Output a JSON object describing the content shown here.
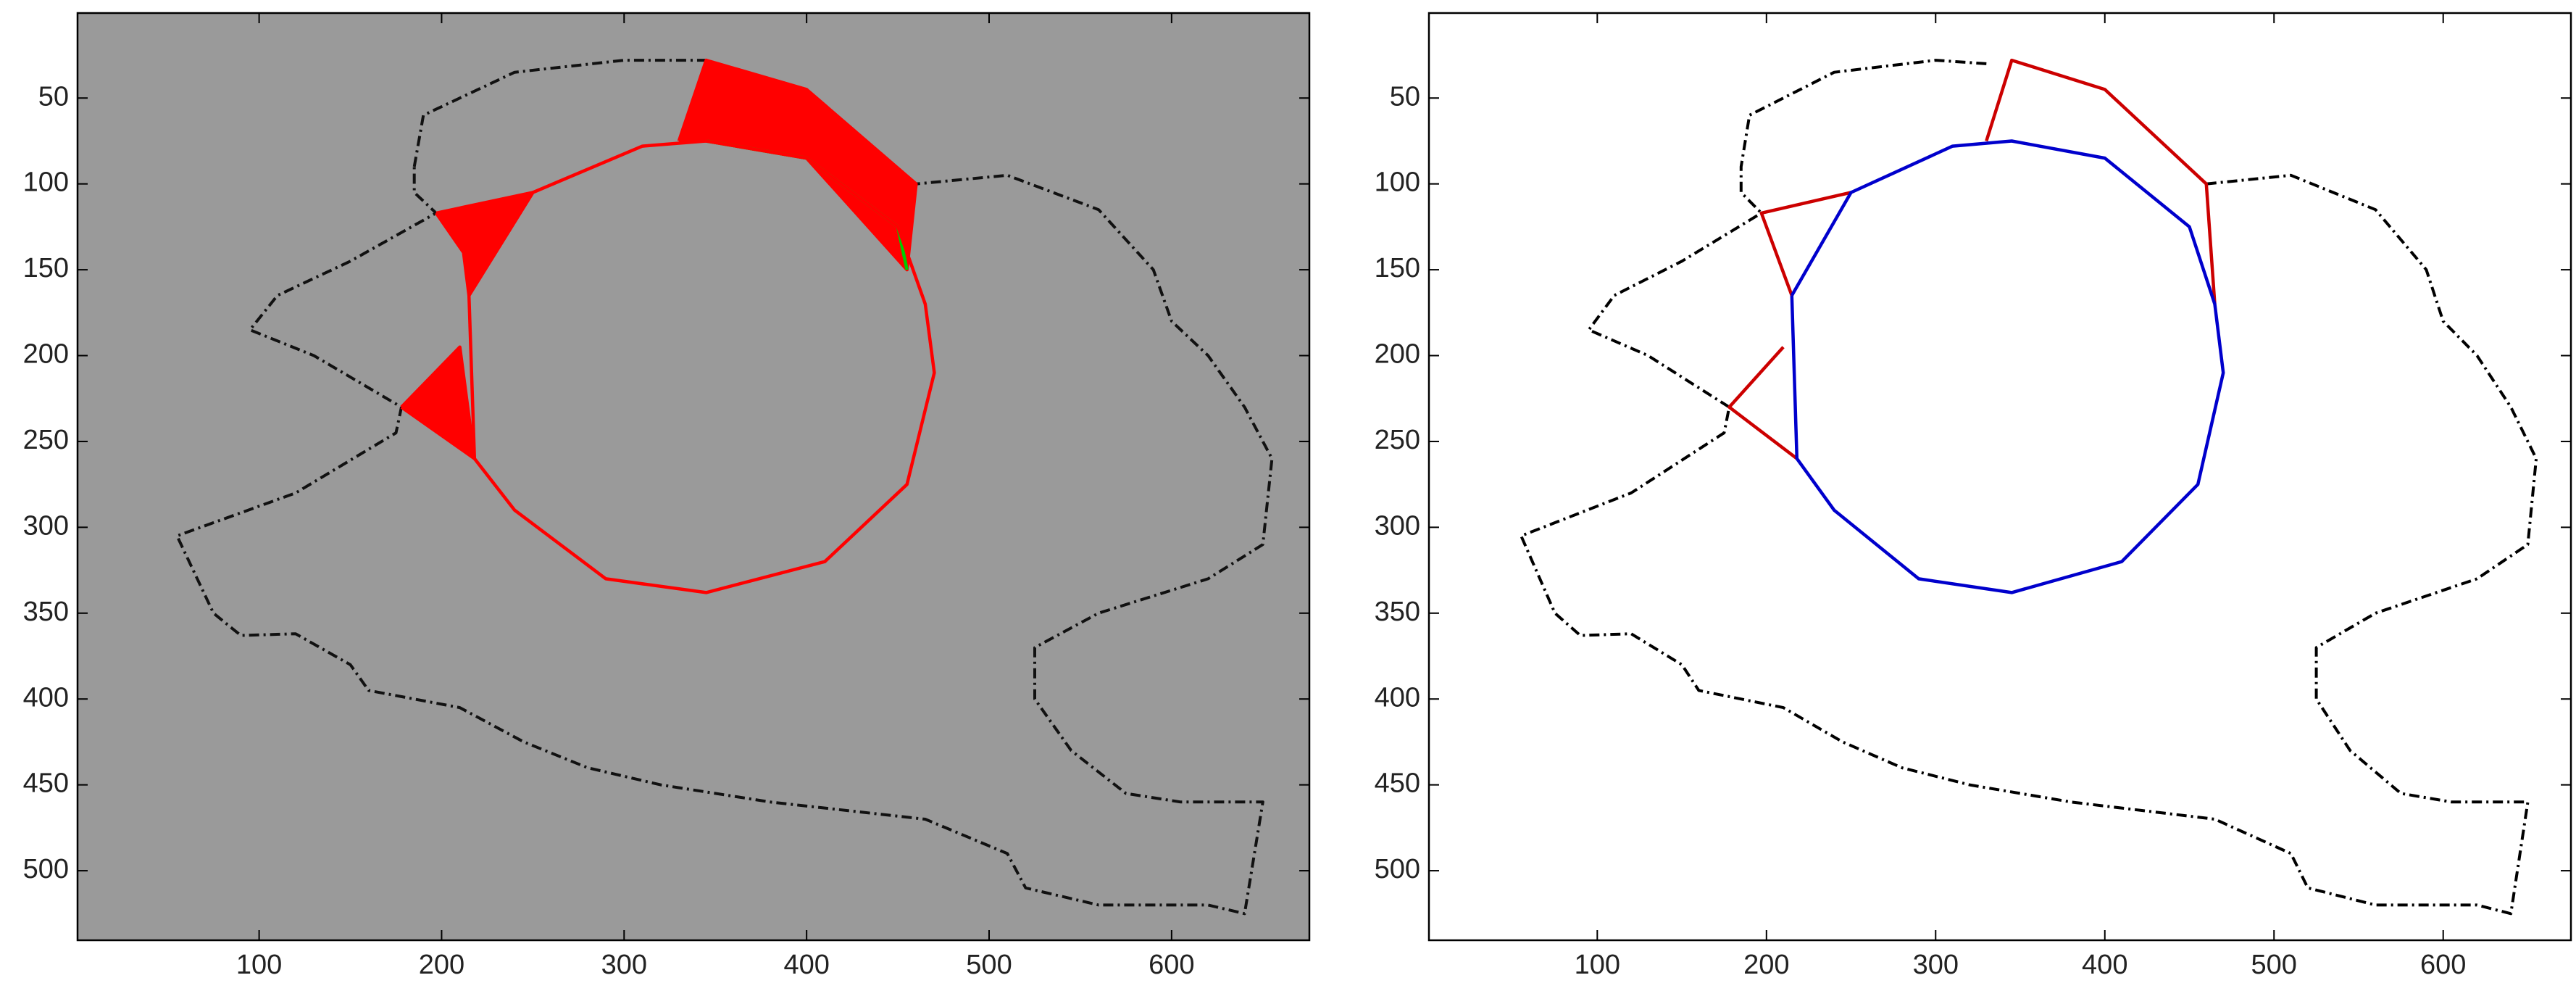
{
  "chart_data": [
    {
      "type": "line",
      "background": "#9a9a9a",
      "y_reversed": true,
      "xlim": [
        0.5,
        675.5
      ],
      "ylim": [
        0.5,
        540.5
      ],
      "xticks": [
        100,
        200,
        300,
        400,
        500,
        600
      ],
      "yticks": [
        50,
        100,
        150,
        200,
        250,
        300,
        350,
        400,
        450,
        500
      ],
      "series": [
        {
          "color": "#111111",
          "dash": true,
          "fill": null,
          "x": [
            185,
            190,
            240,
            300,
            345,
            400,
            460,
            510,
            560,
            590,
            600,
            620,
            640,
            655,
            650,
            620,
            560,
            525,
            525,
            545,
            575,
            605,
            650,
            640,
            620,
            560,
            520,
            510,
            465,
            380,
            320,
            280,
            245,
            210,
            160,
            150,
            120,
            90,
            75,
            55,
            120,
            175,
            178,
            130,
            95,
            110,
            150,
            197,
            185,
            185
          ],
          "y": [
            90,
            60,
            35,
            28,
            28,
            45,
            100,
            95,
            115,
            150,
            180,
            200,
            230,
            260,
            310,
            330,
            350,
            370,
            400,
            430,
            455,
            460,
            460,
            525,
            520,
            520,
            510,
            490,
            470,
            460,
            450,
            440,
            425,
            405,
            395,
            380,
            362,
            363,
            350,
            305,
            280,
            245,
            230,
            200,
            185,
            165,
            145,
            117,
            105,
            90
          ]
        },
        {
          "color": "#ff0000",
          "dash": false,
          "fill": "#ff0000",
          "x": [
            330,
            345,
            400,
            460,
            455,
            400,
            345,
            330
          ],
          "y": [
            75,
            28,
            45,
            100,
            150,
            85,
            75,
            75
          ]
        },
        {
          "color": "#ff0000",
          "dash": false,
          "fill": "#ff0000",
          "x": [
            197,
            250,
            215,
            212,
            197
          ],
          "y": [
            117,
            105,
            165,
            140,
            117
          ]
        },
        {
          "color": "#ff0000",
          "dash": false,
          "fill": "#ff0000",
          "x": [
            178,
            210,
            218,
            178
          ],
          "y": [
            230,
            195,
            260,
            230
          ]
        },
        {
          "color": "#00cc00",
          "dash": false,
          "fill": null,
          "x": [
            345,
            400,
            450,
            455
          ],
          "y": [
            75,
            85,
            125,
            150
          ]
        },
        {
          "color": "#ff0000",
          "dash": false,
          "fill": null,
          "x": [
            215,
            218,
            240,
            290,
            345,
            410,
            455,
            470,
            465,
            450,
            400,
            345,
            310,
            250,
            215
          ],
          "y": [
            165,
            260,
            290,
            330,
            338,
            320,
            275,
            210,
            170,
            125,
            85,
            75,
            78,
            105,
            165
          ]
        }
      ]
    },
    {
      "type": "line",
      "background": "#ffffff",
      "y_reversed": true,
      "xlim": [
        0.5,
        675.5
      ],
      "ylim": [
        0.5,
        540.5
      ],
      "xticks": [
        100,
        200,
        300,
        400,
        500,
        600
      ],
      "yticks": [
        50,
        100,
        150,
        200,
        250,
        300,
        350,
        400,
        450,
        500
      ],
      "series": [
        {
          "color": "#000000",
          "dash": true,
          "fill": null,
          "x": [
            330,
            300,
            240,
            190,
            185,
            185,
            197
          ],
          "y": [
            30,
            28,
            35,
            60,
            90,
            105,
            117
          ]
        },
        {
          "color": "#000000",
          "dash": true,
          "fill": null,
          "x": [
            460,
            510,
            560,
            590,
            600,
            620,
            640,
            655,
            650,
            620,
            560,
            525,
            525,
            545,
            575,
            605,
            650,
            640,
            620,
            560,
            520,
            510,
            465,
            380,
            320,
            280,
            245,
            210,
            160,
            150,
            120,
            90,
            75,
            55,
            120,
            175,
            178
          ],
          "y": [
            100,
            95,
            115,
            150,
            180,
            200,
            230,
            260,
            310,
            330,
            350,
            370,
            400,
            430,
            455,
            460,
            460,
            525,
            520,
            520,
            510,
            490,
            470,
            460,
            450,
            440,
            425,
            405,
            395,
            380,
            362,
            363,
            350,
            305,
            280,
            245,
            230
          ]
        },
        {
          "color": "#000000",
          "dash": true,
          "fill": null,
          "x": [
            178,
            130,
            95,
            110,
            150,
            197
          ],
          "y": [
            230,
            200,
            185,
            165,
            145,
            117
          ]
        },
        {
          "color": "#cc0000",
          "dash": false,
          "fill": null,
          "x": [
            330,
            345,
            400,
            460,
            465
          ],
          "y": [
            75,
            28,
            45,
            100,
            170
          ]
        },
        {
          "color": "#cc0000",
          "dash": false,
          "fill": null,
          "x": [
            250,
            197,
            215
          ],
          "y": [
            105,
            117,
            165
          ]
        },
        {
          "color": "#cc0000",
          "dash": false,
          "fill": null,
          "x": [
            210,
            178,
            218
          ],
          "y": [
            195,
            230,
            260
          ]
        },
        {
          "color": "#0000cc",
          "dash": false,
          "fill": null,
          "x": [
            215,
            218,
            240,
            290,
            345,
            410,
            455,
            470,
            465,
            450,
            400,
            345,
            310,
            250,
            215
          ],
          "y": [
            165,
            260,
            290,
            330,
            338,
            320,
            275,
            210,
            170,
            125,
            85,
            75,
            78,
            105,
            165
          ]
        }
      ]
    }
  ]
}
